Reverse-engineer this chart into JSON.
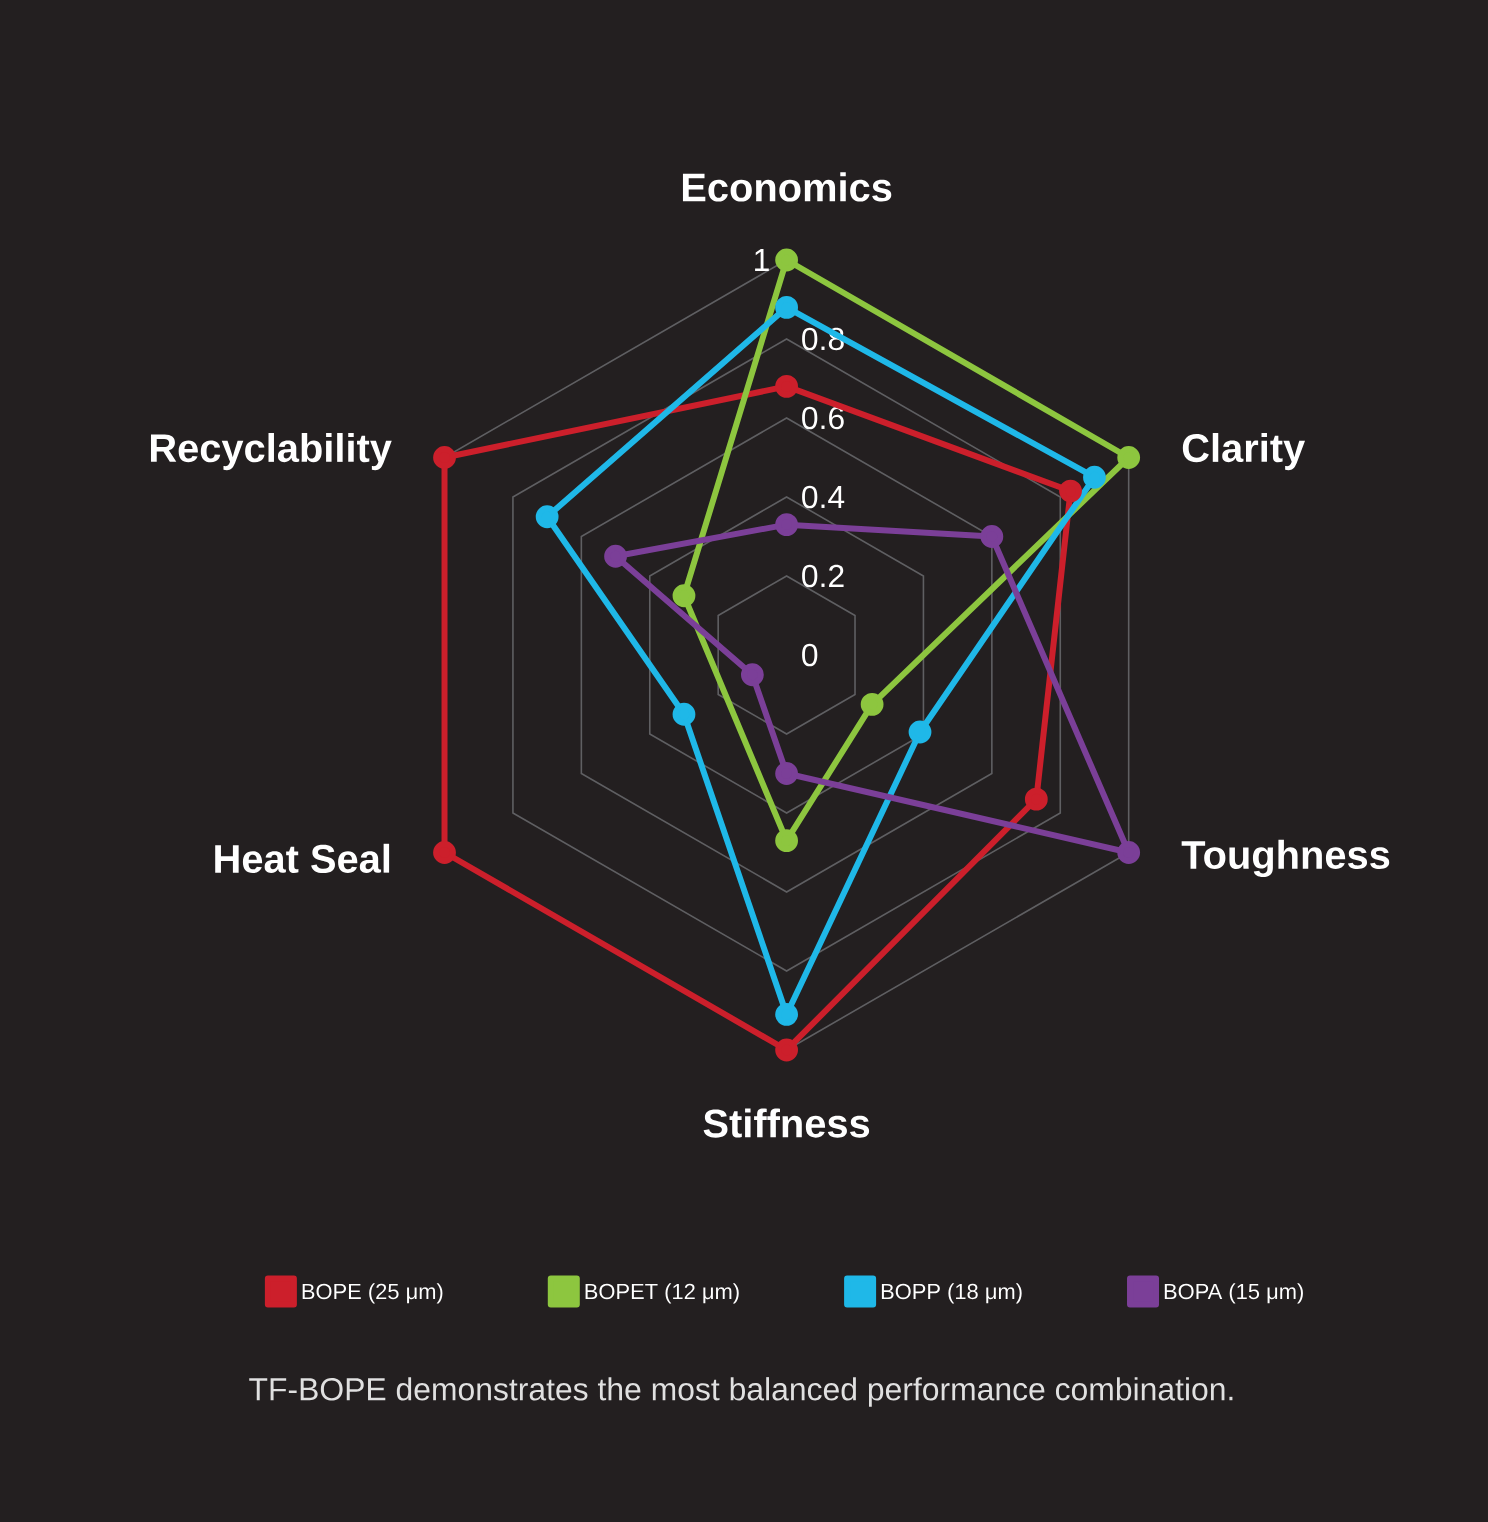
{
  "chart_data": {
    "type": "radar",
    "categories": [
      "Economics",
      "Clarity",
      "Toughness",
      "Stiffness",
      "Heat Seal",
      "Recyclability"
    ],
    "series": [
      {
        "name": "BOPE (25 μm)",
        "color": "#cc1f2b",
        "values": [
          0.68,
          0.83,
          0.73,
          1.0,
          1.0,
          1.0
        ]
      },
      {
        "name": "BOPET (12 μm)",
        "color": "#8dc63f",
        "values": [
          1.0,
          1.0,
          0.25,
          0.47,
          null,
          0.3
        ]
      },
      {
        "name": "BOPP (18 μm)",
        "color": "#1fb8e8",
        "values": [
          0.88,
          0.9,
          0.39,
          0.91,
          0.3,
          0.7
        ]
      },
      {
        "name": "BOPA (15 μm)",
        "color": "#7b3f98",
        "values": [
          0.33,
          0.6,
          1.0,
          0.3,
          0.1,
          0.5
        ]
      }
    ],
    "ylim": [
      0,
      1
    ],
    "yticks": [
      0,
      0.2,
      0.4,
      0.6,
      0.8,
      1
    ],
    "grid": true,
    "marker": "circle",
    "legend": "bottom",
    "annotations": [
      "TF-BOPE demonstrates the most balanced performance combination."
    ]
  }
}
